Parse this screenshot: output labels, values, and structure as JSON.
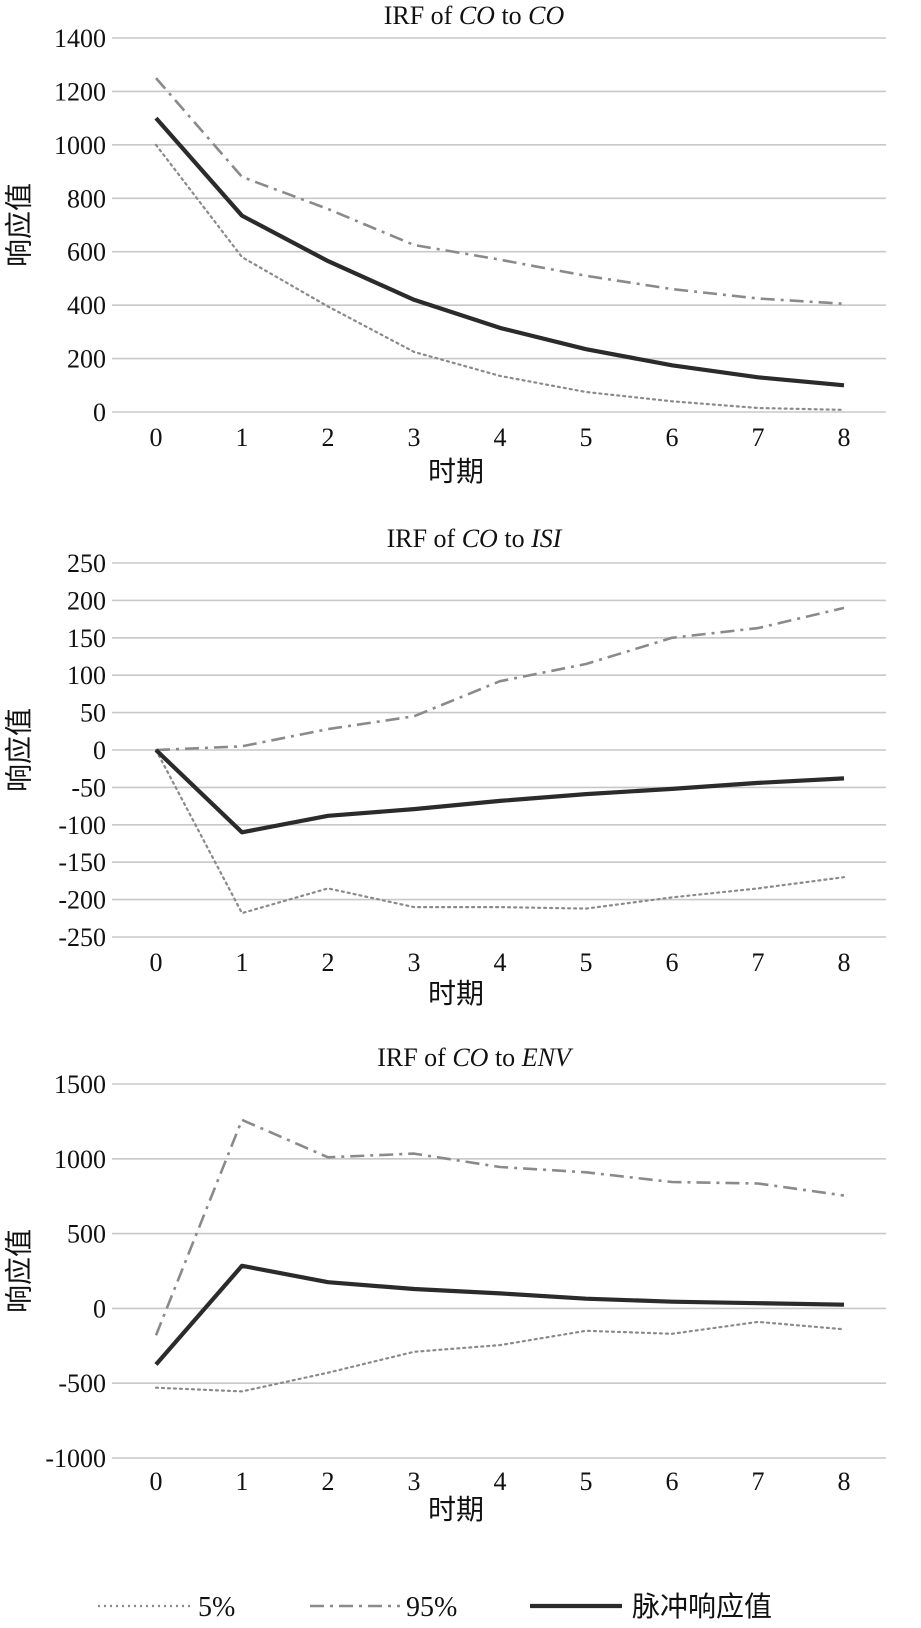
{
  "colors": {
    "grid": "#c8c8c8",
    "s5": "#8a8a8a",
    "s95": "#8a8a8a",
    "irf": "#2b2b2b"
  },
  "legend": [
    {
      "label": "5%",
      "style": "dotted"
    },
    {
      "label": "95%",
      "style": "dashdot"
    },
    {
      "label": "脉冲响应值",
      "style": "solid"
    }
  ],
  "chart_data": [
    {
      "type": "line",
      "title_parts": [
        {
          "text": "IRF of ",
          "italic": false
        },
        {
          "text": "CO",
          "italic": true
        },
        {
          "text": " to ",
          "italic": false
        },
        {
          "text": "CO",
          "italic": true
        }
      ],
      "xlabel": "时期",
      "ylabel": "响应值",
      "x": [
        0,
        1,
        2,
        3,
        4,
        5,
        6,
        7,
        8
      ],
      "ylim": [
        0,
        1400
      ],
      "yticks": [
        0,
        200,
        400,
        600,
        800,
        1000,
        1200,
        1400
      ],
      "grid": true,
      "series": [
        {
          "name": "5%",
          "style": "dotted",
          "values": [
            1000,
            580,
            395,
            225,
            135,
            75,
            40,
            15,
            8
          ]
        },
        {
          "name": "95%",
          "style": "dashdot",
          "values": [
            1250,
            880,
            760,
            625,
            570,
            510,
            460,
            425,
            405
          ]
        },
        {
          "name": "脉冲响应值",
          "style": "solid",
          "values": [
            1100,
            735,
            565,
            420,
            315,
            235,
            175,
            130,
            100
          ]
        }
      ]
    },
    {
      "type": "line",
      "title_parts": [
        {
          "text": "IRF of ",
          "italic": false
        },
        {
          "text": "CO",
          "italic": true
        },
        {
          "text": " to ",
          "italic": false
        },
        {
          "text": "ISI",
          "italic": true
        }
      ],
      "xlabel": "时期",
      "ylabel": "响应值",
      "x": [
        0,
        1,
        2,
        3,
        4,
        5,
        6,
        7,
        8
      ],
      "ylim": [
        -250,
        250
      ],
      "yticks": [
        -250,
        -200,
        -150,
        -100,
        -50,
        0,
        50,
        100,
        150,
        200,
        250
      ],
      "grid": true,
      "series": [
        {
          "name": "5%",
          "style": "dotted",
          "values": [
            0,
            -218,
            -185,
            -210,
            -210,
            -212,
            -197,
            -185,
            -170
          ]
        },
        {
          "name": "95%",
          "style": "dashdot",
          "values": [
            0,
            5,
            28,
            45,
            92,
            115,
            150,
            163,
            190
          ]
        },
        {
          "name": "脉冲响应值",
          "style": "solid",
          "values": [
            0,
            -110,
            -88,
            -79,
            -68,
            -59,
            -52,
            -44,
            -38
          ]
        }
      ]
    },
    {
      "type": "line",
      "title_parts": [
        {
          "text": "IRF of ",
          "italic": false
        },
        {
          "text": "CO",
          "italic": true
        },
        {
          "text": " to ",
          "italic": false
        },
        {
          "text": "ENV",
          "italic": true
        }
      ],
      "xlabel": "时期",
      "ylabel": "响应值",
      "x": [
        0,
        1,
        2,
        3,
        4,
        5,
        6,
        7,
        8
      ],
      "ylim": [
        -1000,
        1500
      ],
      "yticks": [
        -1000,
        -500,
        0,
        500,
        1000,
        1500
      ],
      "grid": true,
      "series": [
        {
          "name": "5%",
          "style": "dotted",
          "values": [
            -530,
            -555,
            -430,
            -290,
            -245,
            -150,
            -170,
            -90,
            -140
          ]
        },
        {
          "name": "95%",
          "style": "dashdot",
          "values": [
            -180,
            1260,
            1010,
            1035,
            945,
            910,
            845,
            835,
            755
          ]
        },
        {
          "name": "脉冲响应值",
          "style": "solid",
          "values": [
            -375,
            285,
            175,
            130,
            100,
            65,
            45,
            35,
            25
          ]
        }
      ]
    }
  ]
}
